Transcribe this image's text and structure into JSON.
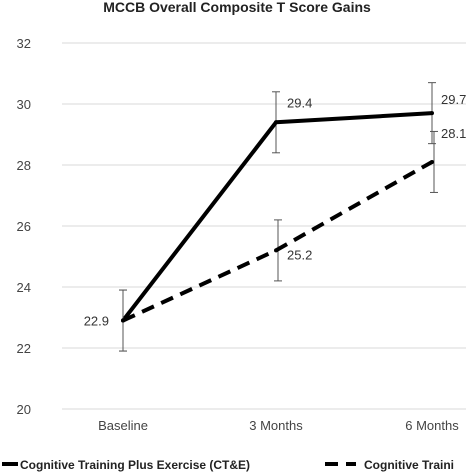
{
  "chart_data": {
    "type": "line",
    "title": "MCCB Overall Composite T Score Gains",
    "xlabel": "",
    "ylabel": "",
    "categories": [
      "Baseline",
      "3 Months",
      "6 Months"
    ],
    "ylim": [
      20,
      32
    ],
    "yticks": [
      20,
      22,
      24,
      26,
      28,
      30,
      32
    ],
    "grid": true,
    "legend_position": "bottom",
    "series": [
      {
        "name": "Cognitive Training Plus Exercise (CT&E)",
        "values": [
          22.9,
          29.4,
          29.7
        ],
        "error": [
          1.0,
          1.0,
          1.0
        ],
        "labels": [
          "22.9",
          "29.4",
          "29.7"
        ],
        "line_style": "solid",
        "color": "#000000"
      },
      {
        "name": "Cognitive Traini",
        "values": [
          22.9,
          25.2,
          28.1
        ],
        "error": [
          1.0,
          1.0,
          1.0
        ],
        "labels": [
          "",
          "25.2",
          "28.1"
        ],
        "line_style": "dashed",
        "color": "#000000"
      }
    ]
  }
}
